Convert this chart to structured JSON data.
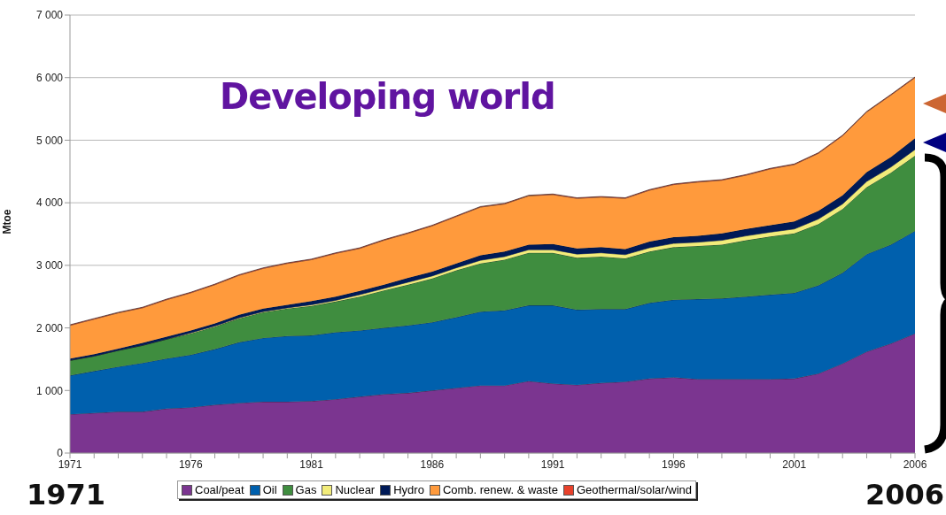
{
  "chart_data": {
    "type": "area",
    "stacked": true,
    "title": "Developing world",
    "ylabel": "Mtoe",
    "x": [
      1971,
      1972,
      1973,
      1974,
      1975,
      1976,
      1977,
      1978,
      1979,
      1980,
      1981,
      1982,
      1983,
      1984,
      1985,
      1986,
      1987,
      1988,
      1989,
      1990,
      1991,
      1992,
      1993,
      1994,
      1995,
      1996,
      1997,
      1998,
      1999,
      2000,
      2001,
      2002,
      2003,
      2004,
      2005,
      2006
    ],
    "series": [
      {
        "name": "Coal/peat",
        "color": "#7b3590",
        "values": [
          620,
          640,
          660,
          660,
          710,
          730,
          770,
          800,
          820,
          820,
          830,
          860,
          900,
          940,
          960,
          1000,
          1040,
          1080,
          1080,
          1150,
          1110,
          1090,
          1120,
          1140,
          1190,
          1210,
          1180,
          1180,
          1180,
          1180,
          1190,
          1270,
          1430,
          1620,
          1750,
          1910
        ]
      },
      {
        "name": "Oil",
        "color": "#0060ad",
        "values": [
          620,
          670,
          720,
          780,
          800,
          840,
          890,
          970,
          1020,
          1050,
          1050,
          1070,
          1060,
          1060,
          1080,
          1090,
          1130,
          1180,
          1200,
          1210,
          1250,
          1200,
          1180,
          1160,
          1210,
          1240,
          1280,
          1290,
          1320,
          1350,
          1370,
          1410,
          1450,
          1560,
          1580,
          1640
        ]
      },
      {
        "name": "Gas",
        "color": "#3f8d3f",
        "values": [
          240,
          240,
          260,
          280,
          310,
          340,
          360,
          380,
          410,
          440,
          470,
          490,
          540,
          600,
          650,
          700,
          750,
          770,
          810,
          840,
          840,
          830,
          840,
          810,
          820,
          840,
          850,
          860,
          900,
          930,
          950,
          980,
          1020,
          1070,
          1150,
          1200
        ]
      },
      {
        "name": "Nuclear",
        "color": "#f2ec7a",
        "values": [
          0,
          0,
          0,
          0,
          0,
          10,
          10,
          10,
          10,
          10,
          20,
          20,
          30,
          30,
          40,
          40,
          40,
          50,
          50,
          50,
          50,
          60,
          60,
          60,
          60,
          60,
          60,
          70,
          70,
          70,
          70,
          80,
          80,
          90,
          90,
          100
        ]
      },
      {
        "name": "Hydro",
        "color": "#001a57",
        "values": [
          30,
          30,
          30,
          40,
          40,
          40,
          40,
          50,
          50,
          50,
          60,
          60,
          60,
          60,
          70,
          70,
          70,
          80,
          80,
          80,
          90,
          90,
          90,
          90,
          100,
          100,
          100,
          110,
          110,
          110,
          120,
          130,
          140,
          150,
          160,
          180
        ]
      },
      {
        "name": "Comb. renew. & waste",
        "color": "#ff9a3c",
        "values": [
          530,
          560,
          570,
          560,
          590,
          600,
          620,
          630,
          640,
          660,
          660,
          690,
          680,
          710,
          710,
          730,
          750,
          770,
          760,
          780,
          790,
          800,
          800,
          810,
          820,
          840,
          860,
          850,
          860,
          900,
          910,
          920,
          950,
          960,
          990,
          970
        ]
      },
      {
        "name": "Geothermal/solar/wind",
        "color": "#e8412b",
        "values": [
          10,
          10,
          10,
          10,
          10,
          10,
          10,
          10,
          10,
          10,
          10,
          10,
          10,
          10,
          10,
          10,
          10,
          10,
          10,
          10,
          10,
          10,
          10,
          10,
          10,
          10,
          10,
          10,
          10,
          10,
          10,
          10,
          10,
          10,
          10,
          10
        ]
      }
    ],
    "xlim": [
      1971,
      2006
    ],
    "xticks": [
      1971,
      {
        "value": 1972,
        "label": null
      },
      {
        "value": 1973,
        "label": null
      },
      {
        "value": 1974,
        "label": null
      },
      {
        "value": 1975,
        "label": null
      },
      1976,
      {
        "value": 1977,
        "label": null
      },
      {
        "value": 1978,
        "label": null
      },
      {
        "value": 1979,
        "label": null
      },
      {
        "value": 1980,
        "label": null
      },
      1981,
      {
        "value": 1982,
        "label": null
      },
      {
        "value": 1983,
        "label": null
      },
      {
        "value": 1984,
        "label": null
      },
      {
        "value": 1985,
        "label": null
      },
      1986,
      {
        "value": 1987,
        "label": null
      },
      {
        "value": 1988,
        "label": null
      },
      {
        "value": 1989,
        "label": null
      },
      {
        "value": 1990,
        "label": null
      },
      1991,
      {
        "value": 1992,
        "label": null
      },
      {
        "value": 1993,
        "label": null
      },
      {
        "value": 1994,
        "label": null
      },
      {
        "value": 1995,
        "label": null
      },
      1996,
      {
        "value": 1997,
        "label": null
      },
      {
        "value": 1998,
        "label": null
      },
      {
        "value": 1999,
        "label": null
      },
      {
        "value": 2000,
        "label": null
      },
      2001,
      {
        "value": 2002,
        "label": null
      },
      {
        "value": 2003,
        "label": null
      },
      {
        "value": 2004,
        "label": null
      },
      {
        "value": 2005,
        "label": null
      },
      2006
    ],
    "ylim": [
      0,
      7000
    ],
    "yticks": [
      0,
      {
        "value": 1000,
        "label": "1 000"
      },
      {
        "value": 2000,
        "label": "2 000"
      },
      {
        "value": 3000,
        "label": "3 000"
      },
      {
        "value": 4000,
        "label": "4 000"
      },
      {
        "value": 5000,
        "label": "5 000"
      },
      {
        "value": 6000,
        "label": "6 000"
      },
      {
        "value": 7000,
        "label": "7 000"
      }
    ],
    "grid": "y",
    "legend": "bottom",
    "annotations": [
      "1971",
      "2006"
    ]
  }
}
